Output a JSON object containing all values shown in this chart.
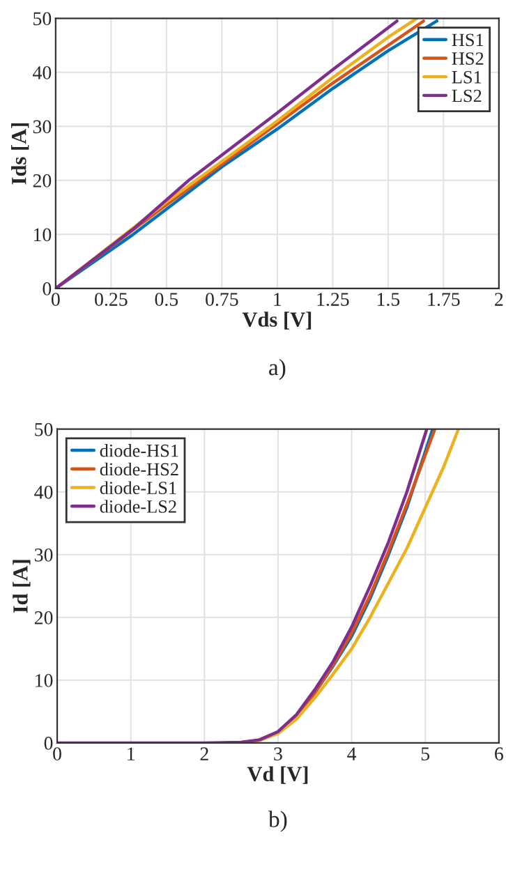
{
  "chart_data": [
    {
      "type": "line",
      "xlabel": "Vds [V]",
      "ylabel": "Ids [A]",
      "annotations": [
        "a)"
      ],
      "xlim": [
        0,
        2
      ],
      "ylim": [
        0,
        50
      ],
      "xticks": [
        0,
        0.25,
        0.5,
        0.75,
        1,
        1.25,
        1.5,
        1.75,
        2
      ],
      "yticks": [
        0,
        10,
        20,
        30,
        40,
        50
      ],
      "grid": true,
      "legend": "top right",
      "series": [
        {
          "name": "HS1",
          "color": "#0072bd",
          "x": [
            0,
            0.35,
            0.75,
            1,
            1.25,
            1.5,
            1.72
          ],
          "values": [
            0,
            10,
            22.5,
            29.5,
            37,
            44,
            49.5
          ]
        },
        {
          "name": "HS2",
          "color": "#d95319",
          "x": [
            0,
            0.5,
            1,
            1.25,
            1.5,
            1.66
          ],
          "values": [
            0,
            15.5,
            30.5,
            38,
            45,
            49.5
          ]
        },
        {
          "name": "LS1",
          "color": "#edb120",
          "x": [
            0,
            0.5,
            1,
            1.25,
            1.5,
            1.63
          ],
          "values": [
            0,
            16,
            31,
            39,
            46.5,
            50
          ]
        },
        {
          "name": "LS2",
          "color": "#7e2f8e",
          "x": [
            0,
            0.35,
            0.6,
            1,
            1.25,
            1.54
          ],
          "values": [
            0,
            11,
            20,
            32.5,
            40.5,
            49.5
          ]
        }
      ]
    },
    {
      "type": "line",
      "xlabel": "Vd [V]",
      "ylabel": "Id [A]",
      "annotations": [
        "b)"
      ],
      "xlim": [
        0,
        6
      ],
      "ylim": [
        0,
        50
      ],
      "xticks": [
        0,
        1,
        2,
        3,
        4,
        5,
        6
      ],
      "yticks": [
        0,
        10,
        20,
        30,
        40,
        50
      ],
      "grid": true,
      "legend": "top left",
      "series": [
        {
          "name": "diode-HS1",
          "color": "#0072bd",
          "x": [
            3.25,
            3.5,
            3.75,
            4,
            4.25,
            4.5,
            4.75,
            5.1
          ],
          "values": [
            4.2,
            8,
            12.3,
            17,
            23,
            30,
            37.5,
            50
          ]
        },
        {
          "name": "diode-HS2",
          "color": "#d95319",
          "x": [
            2.75,
            3,
            3.25,
            3.5,
            3.75,
            4,
            4.25,
            4.5,
            4.75,
            5.13
          ],
          "values": [
            0.5,
            1.7,
            4.2,
            8,
            12.5,
            17.5,
            23.5,
            30.5,
            38,
            50
          ]
        },
        {
          "name": "diode-LS1",
          "color": "#edb120",
          "x": [
            2.5,
            2.75,
            3,
            3.25,
            3.5,
            3.75,
            4,
            4.25,
            4.5,
            4.75,
            5,
            5.25,
            5.45
          ],
          "values": [
            0.1,
            0.4,
            1.5,
            3.8,
            7.2,
            11,
            15,
            20,
            25.5,
            31,
            37.5,
            44,
            50
          ]
        },
        {
          "name": "diode-LS2",
          "color": "#7e2f8e",
          "x": [
            0,
            2,
            2.5,
            2.75,
            3,
            3.25,
            3.5,
            3.75,
            4,
            4.25,
            4.5,
            4.75,
            5.02
          ],
          "values": [
            0,
            0,
            0.1,
            0.5,
            1.8,
            4.5,
            8.5,
            13,
            18.5,
            25,
            32,
            40,
            50
          ]
        }
      ]
    }
  ]
}
